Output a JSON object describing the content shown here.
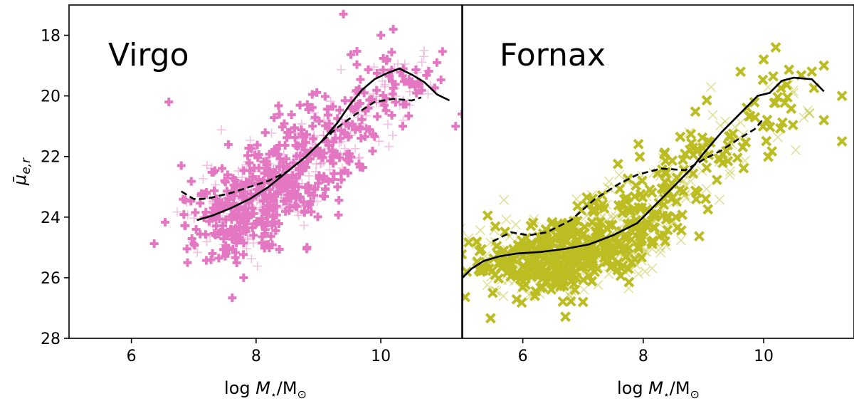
{
  "chart_data": {
    "type": "scatter",
    "ylabel": "μ̄",
    "ylabel_sub": "e,r",
    "xlabel_prefix": "log ",
    "xlabel_var": "M",
    "xlabel_star": "⋆",
    "xlabel_suffix": "/M",
    "xlabel_sun": "⊙",
    "ylim": [
      28,
      17
    ],
    "yticks": [
      18,
      20,
      22,
      24,
      26,
      28
    ],
    "xticks": [
      6,
      8,
      10
    ],
    "panels": [
      {
        "name": "virgo",
        "title": "Virgo",
        "xlim": [
          5.0,
          11.3
        ],
        "marker": "plus",
        "color": "#e377c2",
        "cloud": [
          {
            "x": 7.7,
            "y": 24.0,
            "sx": 0.4,
            "sy": 0.7,
            "n": 260
          },
          {
            "x": 8.35,
            "y": 22.9,
            "sx": 0.4,
            "sy": 0.7,
            "n": 230
          },
          {
            "x": 9.05,
            "y": 21.6,
            "sx": 0.4,
            "sy": 0.6,
            "n": 150
          },
          {
            "x": 9.8,
            "y": 20.3,
            "sx": 0.4,
            "sy": 0.6,
            "n": 80
          },
          {
            "x": 10.4,
            "y": 19.3,
            "sx": 0.35,
            "sy": 0.6,
            "n": 45
          }
        ],
        "outliers": [
          {
            "x": 9.4,
            "y": 17.3
          },
          {
            "x": 10.2,
            "y": 17.8
          },
          {
            "x": 10.0,
            "y": 18.0
          },
          {
            "x": 6.6,
            "y": 20.2
          },
          {
            "x": 6.8,
            "y": 22.3
          },
          {
            "x": 11.2,
            "y": 21.0
          },
          {
            "x": 11.3,
            "y": 20.6
          },
          {
            "x": 7.8,
            "y": 26.0
          },
          {
            "x": 7.3,
            "y": 25.2
          },
          {
            "x": 6.9,
            "y": 25.5
          },
          {
            "x": 10.9,
            "y": 18.9
          }
        ],
        "series": [
          {
            "name": "solid",
            "style": "solid",
            "x": [
              7.05,
              7.3,
              7.6,
              7.9,
              8.2,
              8.5,
              8.8,
              9.05,
              9.3,
              9.5,
              9.7,
              9.9,
              10.1,
              10.3,
              10.5,
              10.7,
              10.9,
              11.1
            ],
            "y": [
              24.1,
              23.95,
              23.7,
              23.4,
              23.0,
              22.5,
              22.0,
              21.5,
              20.9,
              20.3,
              19.8,
              19.45,
              19.25,
              19.1,
              19.3,
              19.55,
              19.95,
              20.15
            ]
          },
          {
            "name": "dashed",
            "style": "dashed",
            "x": [
              6.8,
              7.0,
              7.15,
              7.3,
              7.6,
              7.9,
              8.2,
              8.5,
              8.8,
              9.05,
              9.3,
              9.6,
              9.9,
              10.2,
              10.5,
              10.65
            ],
            "y": [
              23.15,
              23.4,
              23.4,
              23.35,
              23.2,
              23.0,
              22.8,
              22.5,
              22.0,
              21.5,
              21.05,
              20.6,
              20.2,
              20.1,
              20.15,
              20.05
            ]
          }
        ]
      },
      {
        "name": "fornax",
        "title": "Fornax",
        "xlim": [
          5.0,
          11.5
        ],
        "marker": "cross",
        "color": "#bcbd22",
        "cloud": [
          {
            "x": 6.1,
            "y": 25.5,
            "sx": 0.5,
            "sy": 0.55,
            "n": 230
          },
          {
            "x": 7.0,
            "y": 25.0,
            "sx": 0.5,
            "sy": 0.6,
            "n": 260
          },
          {
            "x": 7.8,
            "y": 24.2,
            "sx": 0.45,
            "sy": 0.6,
            "n": 150
          },
          {
            "x": 8.6,
            "y": 22.9,
            "sx": 0.4,
            "sy": 0.6,
            "n": 70
          },
          {
            "x": 9.4,
            "y": 21.6,
            "sx": 0.45,
            "sy": 0.7,
            "n": 55
          },
          {
            "x": 10.3,
            "y": 20.1,
            "sx": 0.4,
            "sy": 0.6,
            "n": 30
          }
        ],
        "outliers": [
          {
            "x": 10.2,
            "y": 18.4
          },
          {
            "x": 10.0,
            "y": 18.8
          },
          {
            "x": 10.8,
            "y": 19.2
          },
          {
            "x": 11.0,
            "y": 19.0
          },
          {
            "x": 11.3,
            "y": 20.0
          },
          {
            "x": 11.3,
            "y": 21.5
          },
          {
            "x": 5.3,
            "y": 25.8
          },
          {
            "x": 5.5,
            "y": 26.5
          },
          {
            "x": 7.0,
            "y": 26.8
          },
          {
            "x": 6.2,
            "y": 26.6
          },
          {
            "x": 11.0,
            "y": 20.8
          }
        ],
        "series": [
          {
            "name": "solid",
            "style": "solid",
            "x": [
              5.0,
              5.15,
              5.35,
              5.6,
              5.9,
              6.3,
              6.7,
              7.1,
              7.5,
              7.9,
              8.2,
              8.5,
              8.8,
              9.0,
              9.3,
              9.6,
              9.9,
              10.1,
              10.3,
              10.5,
              10.8,
              11.0
            ],
            "y": [
              26.0,
              25.7,
              25.45,
              25.3,
              25.2,
              25.15,
              25.05,
              24.9,
              24.6,
              24.2,
              23.6,
              23.0,
              22.4,
              21.9,
              21.2,
              20.6,
              20.0,
              19.9,
              19.5,
              19.4,
              19.45,
              19.85
            ]
          },
          {
            "name": "dashed",
            "style": "dashed",
            "x": [
              5.5,
              5.8,
              6.1,
              6.4,
              6.8,
              7.2,
              7.6,
              7.9,
              8.3,
              8.7,
              9.0,
              9.3,
              9.6,
              9.85,
              10.0
            ],
            "y": [
              24.8,
              24.5,
              24.6,
              24.5,
              24.1,
              23.4,
              22.9,
              22.6,
              22.4,
              22.45,
              22.1,
              21.8,
              21.4,
              21.1,
              20.75
            ]
          }
        ]
      }
    ]
  }
}
